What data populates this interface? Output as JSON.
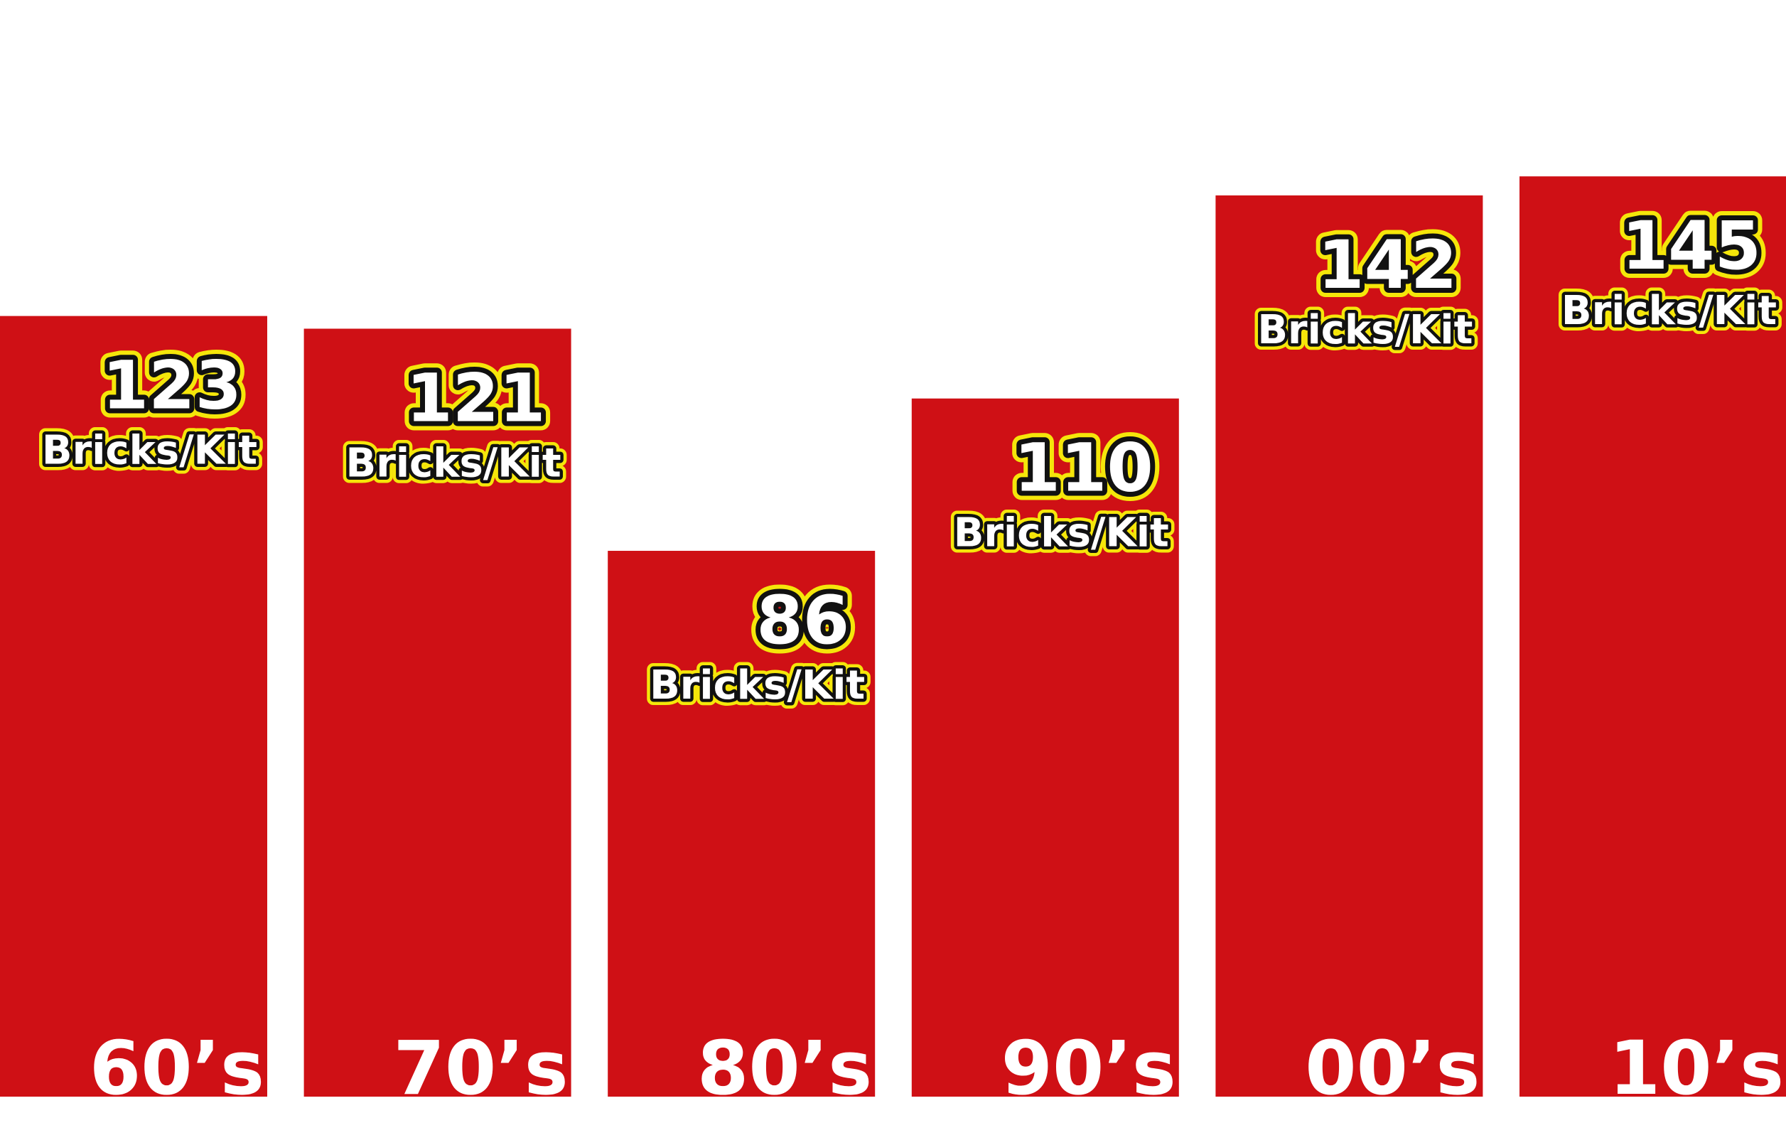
{
  "chart_data": {
    "type": "bar",
    "categories": [
      "60’s",
      "70’s",
      "80’s",
      "90’s",
      "00’s",
      "10’s"
    ],
    "values": [
      123,
      121,
      86,
      110,
      142,
      145
    ],
    "data_labels": [
      "123",
      "121",
      "86",
      "110",
      "142",
      "145"
    ],
    "unit_label": "Bricks/Kit",
    "title": "",
    "xlabel": "",
    "ylabel": "",
    "ylim": [
      0,
      150
    ],
    "grid": false,
    "legend": "none",
    "colors": {
      "bar": "#cf1015",
      "label_fill": "#ffffff",
      "label_stroke": "#111111",
      "label_outline": "#f5e60a",
      "background": "#ffffff"
    }
  }
}
